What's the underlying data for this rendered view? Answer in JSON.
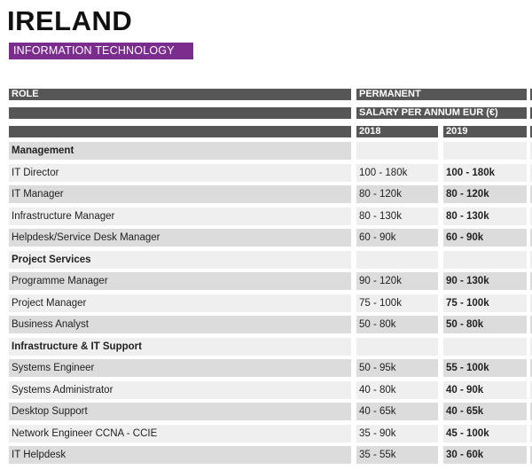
{
  "header": {
    "title": "IRELAND",
    "subtitle": "INFORMATION TECHNOLOGY"
  },
  "table": {
    "columns": {
      "role": "ROLE",
      "type": "PERMANENT",
      "unit": "SALARY PER ANNUM EUR (€)",
      "years": [
        "2018",
        "2019"
      ]
    },
    "sections": [
      {
        "name": "Management",
        "rows": [
          [
            "IT Director",
            "100 - 180k",
            "100 - 180k"
          ],
          [
            "IT Manager",
            "80 - 120k",
            "80 - 120k"
          ],
          [
            "Infrastructure Manager",
            "80 - 130k",
            "80 - 130k"
          ],
          [
            "Helpdesk/Service Desk Manager",
            "60 - 90k",
            "60 - 90k"
          ]
        ]
      },
      {
        "name": "Project Services",
        "rows": [
          [
            "Programme Manager",
            "90 - 120k",
            "90 - 130k"
          ],
          [
            "Project Manager",
            "75 - 100k",
            "75 - 100k"
          ],
          [
            "Business Analyst",
            "50 - 80k",
            "50 - 80k"
          ]
        ]
      },
      {
        "name": "Infrastructure & IT Support",
        "rows": [
          [
            "Systems Engineer",
            "50 - 95k",
            "55 - 100k"
          ],
          [
            "Systems Administrator",
            "40 - 80k",
            "40 - 90k"
          ],
          [
            "Desktop Support",
            "40 - 65k",
            "40 - 65k"
          ],
          [
            "Network Engineer CCNA - CCIE",
            "35 - 90k",
            "45 - 100k"
          ],
          [
            "IT Helpdesk",
            "35 - 55k",
            "30 - 60k"
          ]
        ]
      }
    ]
  }
}
